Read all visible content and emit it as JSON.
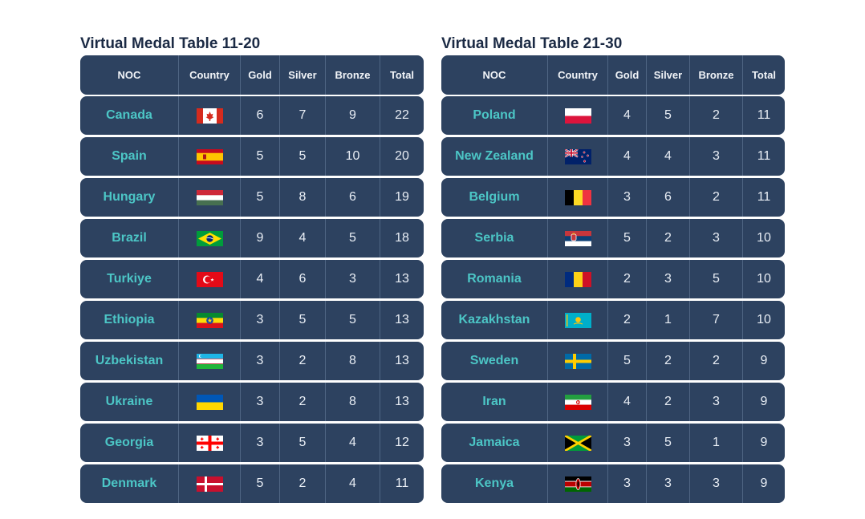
{
  "left": {
    "title": "Virtual Medal Table 11-20",
    "headers": {
      "noc": "NOC",
      "country": "Country",
      "gold": "Gold",
      "silver": "Silver",
      "bronze": "Bronze",
      "total": "Total"
    },
    "rows": [
      {
        "noc": "Canada",
        "flag": "canada-flag",
        "gold": "6",
        "silver": "7",
        "bronze": "9",
        "total": "22"
      },
      {
        "noc": "Spain",
        "flag": "spain-flag",
        "gold": "5",
        "silver": "5",
        "bronze": "10",
        "total": "20"
      },
      {
        "noc": "Hungary",
        "flag": "hungary-flag",
        "gold": "5",
        "silver": "8",
        "bronze": "6",
        "total": "19"
      },
      {
        "noc": "Brazil",
        "flag": "brazil-flag",
        "gold": "9",
        "silver": "4",
        "bronze": "5",
        "total": "18"
      },
      {
        "noc": "Turkiye",
        "flag": "turkiye-flag",
        "gold": "4",
        "silver": "6",
        "bronze": "3",
        "total": "13"
      },
      {
        "noc": "Ethiopia",
        "flag": "ethiopia-flag",
        "gold": "3",
        "silver": "5",
        "bronze": "5",
        "total": "13"
      },
      {
        "noc": "Uzbekistan",
        "flag": "uzbekistan-flag",
        "gold": "3",
        "silver": "2",
        "bronze": "8",
        "total": "13"
      },
      {
        "noc": "Ukraine",
        "flag": "ukraine-flag",
        "gold": "3",
        "silver": "2",
        "bronze": "8",
        "total": "13"
      },
      {
        "noc": "Georgia",
        "flag": "georgia-flag",
        "gold": "3",
        "silver": "5",
        "bronze": "4",
        "total": "12"
      },
      {
        "noc": "Denmark",
        "flag": "denmark-flag",
        "gold": "5",
        "silver": "2",
        "bronze": "4",
        "total": "11"
      }
    ]
  },
  "right": {
    "title": "Virtual Medal Table 21-30",
    "headers": {
      "noc": "NOC",
      "country": "Country",
      "gold": "Gold",
      "silver": "Silver",
      "bronze": "Bronze",
      "total": "Total"
    },
    "rows": [
      {
        "noc": "Poland",
        "flag": "poland-flag",
        "gold": "4",
        "silver": "5",
        "bronze": "2",
        "total": "11"
      },
      {
        "noc": "New Zealand",
        "flag": "new-zealand-flag",
        "gold": "4",
        "silver": "4",
        "bronze": "3",
        "total": "11"
      },
      {
        "noc": "Belgium",
        "flag": "belgium-flag",
        "gold": "3",
        "silver": "6",
        "bronze": "2",
        "total": "11"
      },
      {
        "noc": "Serbia",
        "flag": "serbia-flag",
        "gold": "5",
        "silver": "2",
        "bronze": "3",
        "total": "10"
      },
      {
        "noc": "Romania",
        "flag": "romania-flag",
        "gold": "2",
        "silver": "3",
        "bronze": "5",
        "total": "10"
      },
      {
        "noc": "Kazakhstan",
        "flag": "kazakhstan-flag",
        "gold": "2",
        "silver": "1",
        "bronze": "7",
        "total": "10"
      },
      {
        "noc": "Sweden",
        "flag": "sweden-flag",
        "gold": "5",
        "silver": "2",
        "bronze": "2",
        "total": "9"
      },
      {
        "noc": "Iran",
        "flag": "iran-flag",
        "gold": "4",
        "silver": "2",
        "bronze": "3",
        "total": "9"
      },
      {
        "noc": "Jamaica",
        "flag": "jamaica-flag",
        "gold": "3",
        "silver": "5",
        "bronze": "1",
        "total": "9"
      },
      {
        "noc": "Kenya",
        "flag": "kenya-flag",
        "gold": "3",
        "silver": "3",
        "bronze": "3",
        "total": "9"
      }
    ]
  }
}
